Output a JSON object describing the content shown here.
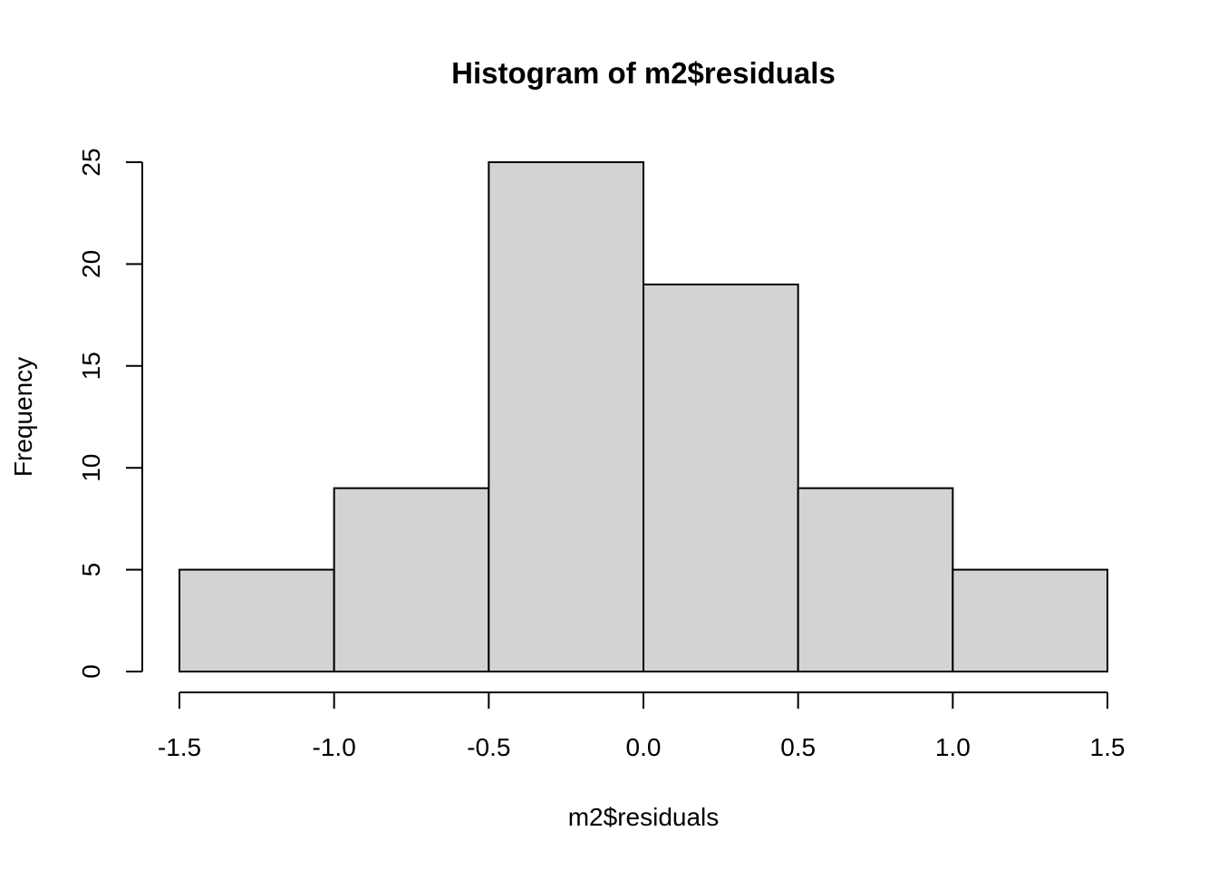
{
  "chart_data": {
    "type": "bar",
    "title": "Histogram of m2$residuals",
    "xlabel": "m2$residuals",
    "ylabel": "Frequency",
    "bins": [
      {
        "x0": -1.5,
        "x1": -1.0,
        "value": 5
      },
      {
        "x0": -1.0,
        "x1": -0.5,
        "value": 9
      },
      {
        "x0": -0.5,
        "x1": 0.0,
        "value": 25
      },
      {
        "x0": 0.0,
        "x1": 0.5,
        "value": 19
      },
      {
        "x0": 0.5,
        "x1": 1.0,
        "value": 9
      },
      {
        "x0": 1.0,
        "x1": 1.5,
        "value": 5
      }
    ],
    "xlim": [
      -1.5,
      1.5
    ],
    "ylim": [
      0,
      25
    ],
    "x_ticks": [
      -1.5,
      -1.0,
      -0.5,
      0.0,
      0.5,
      1.0,
      1.5
    ],
    "x_tick_labels": [
      "-1.5",
      "-1.0",
      "-0.5",
      "0.0",
      "0.5",
      "1.0",
      "1.5"
    ],
    "y_ticks": [
      0,
      5,
      10,
      15,
      20,
      25
    ],
    "y_tick_labels": [
      "0",
      "5",
      "10",
      "15",
      "20",
      "25"
    ],
    "grid": false,
    "legend": "none",
    "bar_fill": "#d3d3d3",
    "bar_stroke": "#000000"
  }
}
